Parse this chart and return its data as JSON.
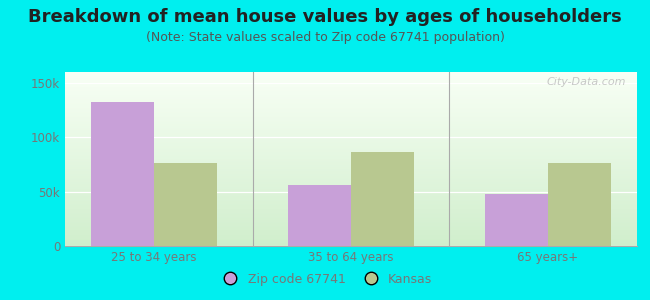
{
  "title": "Breakdown of mean house values by ages of householders",
  "subtitle": "(Note: State values scaled to Zip code 67741 population)",
  "categories": [
    "25 to 34 years",
    "35 to 64 years",
    "65 years+"
  ],
  "zip_values": [
    132000,
    56000,
    48000
  ],
  "state_values": [
    76000,
    86000,
    76000
  ],
  "ylim": [
    0,
    160000
  ],
  "yticks": [
    0,
    50000,
    100000,
    150000
  ],
  "ytick_labels": [
    "0",
    "50k",
    "100k",
    "150k"
  ],
  "zip_color": "#c8a0d8",
  "state_color": "#b8c890",
  "background_color": "#00efef",
  "legend_zip_label": "Zip code 67741",
  "legend_state_label": "Kansas",
  "bar_width": 0.32,
  "title_fontsize": 13,
  "subtitle_fontsize": 9,
  "watermark": "City-Data.com",
  "title_color": "#222222",
  "subtitle_color": "#555555",
  "tick_color": "#777777",
  "divider_color": "#aaaaaa"
}
